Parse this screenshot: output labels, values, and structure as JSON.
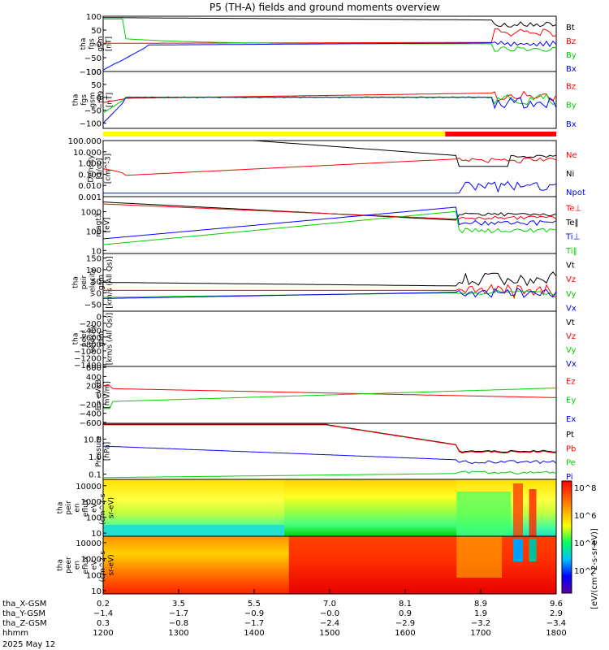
{
  "title": "P5 (TH-A) fields and ground moments overview",
  "colors": {
    "black": "#000000",
    "red": "#ff0000",
    "green": "#00d000",
    "blue": "#0000ff",
    "yellow": "#ffff00"
  },
  "chart_data": {
    "type": "line",
    "panels": [
      {
        "id": "fgs-gsm",
        "ylabel": [
          "tha",
          "fgs",
          "gsm",
          "[nT]"
        ],
        "yticks": [
          "100",
          "50",
          "0",
          "−50",
          "−100"
        ],
        "ylim": [
          -100,
          100
        ],
        "scale": "linear",
        "legend": [
          {
            "name": "Bt",
            "color": "black"
          },
          {
            "name": "Bz",
            "color": "red"
          },
          {
            "name": "By",
            "color": "green"
          },
          {
            "name": "Bx",
            "color": "blue"
          }
        ]
      },
      {
        "id": "fgs-gsm-t89",
        "ylabel": [
          "tha",
          "fgs",
          "gsm",
          "−t89",
          "[nT]"
        ],
        "yticks": [
          "100",
          "50",
          "0",
          "−50",
          "−100"
        ],
        "ylim": [
          -120,
          100
        ],
        "scale": "linear",
        "legend": [
          {
            "name": "Bz",
            "color": "red"
          },
          {
            "name": "By",
            "color": "green"
          },
          {
            "name": "Bx",
            "color": "blue"
          }
        ]
      },
      {
        "id": "density",
        "ylabel": [
          "Density",
          "[1/cc]",
          "[cm^-3]"
        ],
        "yticks": [
          "100.000",
          "10.000",
          "1.000",
          "0.100",
          "0.010",
          "0.001"
        ],
        "ylim": [
          0.001,
          100
        ],
        "scale": "log",
        "legend": [
          {
            "name": "Ne",
            "color": "red"
          },
          {
            "name": "Ni",
            "color": "black"
          },
          {
            "name": "Npot",
            "color": "blue"
          }
        ]
      },
      {
        "id": "temperature",
        "ylabel": [
          "magt3",
          "[eV]"
        ],
        "yticks": [
          "1000",
          "100",
          "10"
        ],
        "ylim": [
          7,
          6000
        ],
        "scale": "log",
        "legend": [
          {
            "name": "Te⊥",
            "color": "red"
          },
          {
            "name": "Te‖",
            "color": "black"
          },
          {
            "name": "Ti⊥",
            "color": "blue"
          },
          {
            "name": "Ti‖",
            "color": "green"
          }
        ]
      },
      {
        "id": "peir-velocity",
        "ylabel": [
          "tha",
          "peir",
          "velocity",
          "gsm",
          "[km/s (All Qs)]"
        ],
        "yticks": [
          "150",
          "100",
          "50",
          "0",
          "−50"
        ],
        "ylim": [
          -80,
          170
        ],
        "scale": "linear",
        "legend": [
          {
            "name": "Vt",
            "color": "black"
          },
          {
            "name": "Vz",
            "color": "red"
          },
          {
            "name": "Vy",
            "color": "green"
          },
          {
            "name": "Vx",
            "color": "blue"
          }
        ]
      },
      {
        "id": "peer-velocity",
        "ylabel": [
          "tha",
          "peer",
          "velocity",
          "gsm",
          "[km/s (All Qs)]"
        ],
        "yticks": [
          "0",
          "−200",
          "−400",
          "−600",
          "−800",
          "−1000",
          "−1200",
          "−1400"
        ],
        "ylim": [
          -1450,
          150
        ],
        "scale": "linear",
        "legend": [
          {
            "name": "Vt",
            "color": "black"
          },
          {
            "name": "Vz",
            "color": "red"
          },
          {
            "name": "Vy",
            "color": "green"
          },
          {
            "name": "Vx",
            "color": "blue"
          }
        ]
      },
      {
        "id": "efield",
        "ylabel": [
          "E=−VxB",
          "[mV/m]"
        ],
        "yticks": [
          "600",
          "400",
          "200",
          "0",
          "−200",
          "−400",
          "−600"
        ],
        "ylim": [
          -620,
          620
        ],
        "scale": "linear",
        "legend": [
          {
            "name": "Ez",
            "color": "red"
          },
          {
            "name": "Ey",
            "color": "green"
          },
          {
            "name": "Ex",
            "color": "blue"
          }
        ]
      },
      {
        "id": "pressure",
        "ylabel": [
          "Pressure",
          "[nPa]"
        ],
        "yticks": [
          "10.0",
          "1.0",
          "0.1"
        ],
        "ylim": [
          0.05,
          80
        ],
        "scale": "log",
        "legend": [
          {
            "name": "Pt",
            "color": "black"
          },
          {
            "name": "Pb",
            "color": "red"
          },
          {
            "name": "Pe",
            "color": "green"
          },
          {
            "name": "Pi",
            "color": "blue"
          }
        ]
      },
      {
        "id": "peir-eflux",
        "ylabel": [
          "tha",
          "peir",
          "en",
          "eflux",
          "eV",
          "(cm^2-s-",
          "sr-eV)"
        ],
        "yticks": [
          "10000",
          "1000",
          "100",
          "10"
        ],
        "scale": "log",
        "type": "heatmap"
      },
      {
        "id": "peer-eflux",
        "ylabel": [
          "tha",
          "peer",
          "en",
          "eflux",
          "eV",
          "(cm^2-s-",
          "sr-eV)"
        ],
        "yticks": [
          "10000",
          "1000",
          "100",
          "10"
        ],
        "scale": "log",
        "type": "heatmap"
      }
    ],
    "colorbar": {
      "ticks": [
        "10^8",
        "10^6",
        "10^4",
        "10^2"
      ],
      "label": "[eV/(cm^2-s-sr-eV)]"
    },
    "status_bar": [
      {
        "from": 0,
        "to": 0.755,
        "color": "yellow"
      },
      {
        "from": 0.755,
        "to": 1,
        "color": "red"
      }
    ],
    "xaxis": {
      "rows": [
        {
          "label": "tha_X-GSM",
          "values": [
            "0.2",
            "3.5",
            "5.5",
            "7.0",
            "8.1",
            "8.9",
            "9.6"
          ]
        },
        {
          "label": "tha_Y-GSM",
          "values": [
            "−1.4",
            "−1.7",
            "−0.9",
            "−0.0",
            "0.9",
            "1.9",
            "2.9"
          ]
        },
        {
          "label": "tha_Z-GSM",
          "values": [
            "0.3",
            "−0.8",
            "−1.7",
            "−2.4",
            "−2.9",
            "−3.2",
            "−3.4"
          ]
        },
        {
          "label": "hhmm",
          "values": [
            "1200",
            "1300",
            "1400",
            "1500",
            "1600",
            "1700",
            "1800"
          ]
        }
      ],
      "date": "2025 May 12",
      "range": [
        1200,
        1800
      ]
    }
  }
}
